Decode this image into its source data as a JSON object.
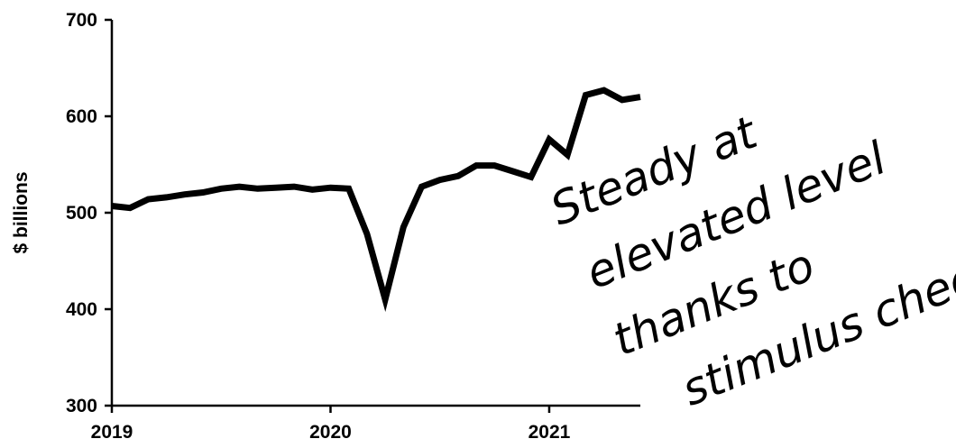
{
  "chart_data": {
    "type": "line",
    "ylabel": "$ billions",
    "xlabel": "",
    "title": "",
    "ylim": [
      300,
      700
    ],
    "yticks": [
      300,
      400,
      500,
      600,
      700
    ],
    "xlim": [
      "2019-01",
      "2021-06"
    ],
    "xticks": [
      "2019",
      "2020",
      "2021"
    ],
    "grid": false,
    "line_color": "#000000",
    "series": [
      {
        "x": [
          "2019-01",
          "2019-02",
          "2019-03",
          "2019-04",
          "2019-05",
          "2019-06",
          "2019-07",
          "2019-08",
          "2019-09",
          "2019-10",
          "2019-11",
          "2019-12",
          "2020-01",
          "2020-02",
          "2020-03",
          "2020-04",
          "2020-05",
          "2020-06",
          "2020-07",
          "2020-08",
          "2020-09",
          "2020-10",
          "2020-11",
          "2020-12",
          "2021-01",
          "2021-02",
          "2021-03",
          "2021-04",
          "2021-05",
          "2021-06"
        ],
        "values": [
          507,
          505,
          514,
          516,
          519,
          521,
          525,
          527,
          525,
          526,
          527,
          524,
          526,
          525,
          478,
          410,
          485,
          527,
          534,
          538,
          549,
          549,
          543,
          537,
          576,
          560,
          622,
          627,
          617,
          620
        ]
      }
    ],
    "annotations": [
      {
        "lines": [
          "Steady at",
          "elevated level",
          "thanks to",
          "stimulus checks"
        ],
        "style": "handwritten"
      }
    ]
  }
}
